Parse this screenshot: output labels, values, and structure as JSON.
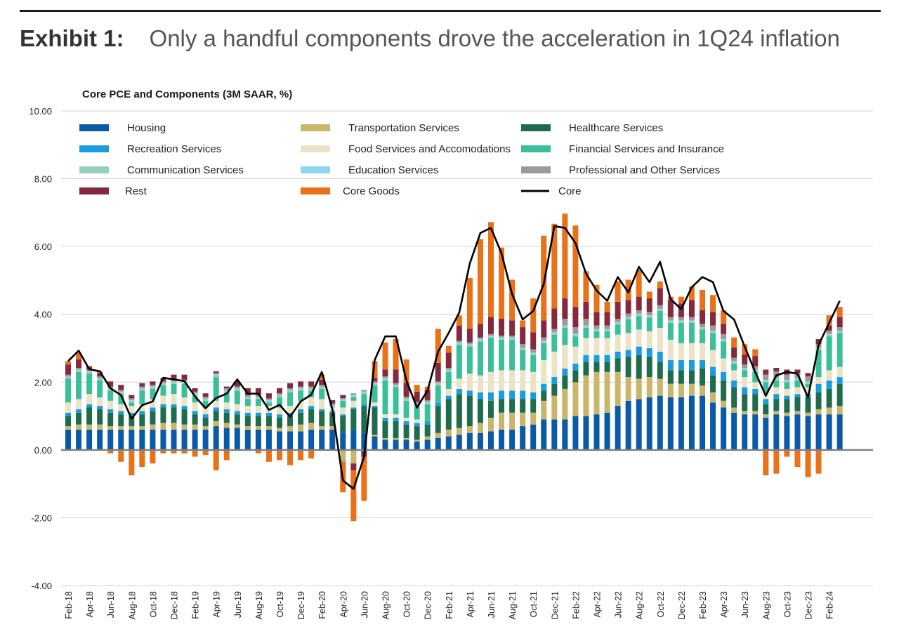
{
  "header": {
    "exhibit_label": "Exhibit 1:",
    "exhibit_title": "Only a handful components drove the acceleration in 1Q24 inflation"
  },
  "chart_data": {
    "type": "bar",
    "stacked": true,
    "title": "Core PCE and Components (3M SAAR, %)",
    "ylim": [
      -4,
      10
    ],
    "yticks": [
      "10.00",
      "8.00",
      "6.00",
      "4.00",
      "2.00",
      "0.00",
      "-2.00",
      "-4.00"
    ],
    "grid": true,
    "legend_position": "top",
    "categories": [
      "Feb-18",
      "Mar-18",
      "Apr-18",
      "May-18",
      "Jun-18",
      "Jul-18",
      "Aug-18",
      "Sep-18",
      "Oct-18",
      "Nov-18",
      "Dec-18",
      "Jan-19",
      "Feb-19",
      "Mar-19",
      "Apr-19",
      "May-19",
      "Jun-19",
      "Jul-19",
      "Aug-19",
      "Sep-19",
      "Oct-19",
      "Nov-19",
      "Dec-19",
      "Jan-20",
      "Feb-20",
      "Mar-20",
      "Apr-20",
      "May-20",
      "Jun-20",
      "Jul-20",
      "Aug-20",
      "Sep-20",
      "Oct-20",
      "Nov-20",
      "Dec-20",
      "Jan-21",
      "Feb-21",
      "Mar-21",
      "Apr-21",
      "May-21",
      "Jun-21",
      "Jul-21",
      "Aug-21",
      "Sep-21",
      "Oct-21",
      "Nov-21",
      "Dec-21",
      "Jan-22",
      "Feb-22",
      "Mar-22",
      "Apr-22",
      "May-22",
      "Jun-22",
      "Jul-22",
      "Aug-22",
      "Sep-22",
      "Oct-22",
      "Nov-22",
      "Dec-22",
      "Jan-23",
      "Feb-23",
      "Mar-23",
      "Apr-23",
      "May-23",
      "Jun-23",
      "Jul-23",
      "Aug-23",
      "Sep-23",
      "Oct-23",
      "Nov-23",
      "Dec-23",
      "Jan-24",
      "Feb-24",
      "Mar-24"
    ],
    "xtick_labels": [
      "Feb-18",
      "Apr-18",
      "Jun-18",
      "Aug-18",
      "Oct-18",
      "Dec-18",
      "Feb-19",
      "Apr-19",
      "Jun-19",
      "Aug-19",
      "Oct-19",
      "Dec-19",
      "Feb-20",
      "Apr-20",
      "Jun-20",
      "Aug-20",
      "Oct-20",
      "Dec-20",
      "Feb-21",
      "Apr-21",
      "Jun-21",
      "Aug-21",
      "Oct-21",
      "Dec-21",
      "Feb-22",
      "Apr-22",
      "Jun-22",
      "Aug-22",
      "Oct-22",
      "Dec-22",
      "Feb-23",
      "Apr-23",
      "Jun-23",
      "Aug-23",
      "Oct-23",
      "Dec-23",
      "Feb-24"
    ],
    "series": [
      {
        "name": "Housing",
        "color": "#0b5aa8",
        "values": [
          0.6,
          0.6,
          0.6,
          0.6,
          0.6,
          0.6,
          0.6,
          0.6,
          0.6,
          0.6,
          0.6,
          0.6,
          0.6,
          0.6,
          0.7,
          0.65,
          0.65,
          0.6,
          0.6,
          0.6,
          0.55,
          0.55,
          0.55,
          0.6,
          0.6,
          0.6,
          0.5,
          0.6,
          0.5,
          0.4,
          0.3,
          0.3,
          0.3,
          0.25,
          0.3,
          0.35,
          0.4,
          0.45,
          0.5,
          0.5,
          0.55,
          0.6,
          0.6,
          0.7,
          0.75,
          0.9,
          0.9,
          0.9,
          1.0,
          1.0,
          1.05,
          1.1,
          1.3,
          1.45,
          1.5,
          1.55,
          1.6,
          1.55,
          1.55,
          1.6,
          1.6,
          1.4,
          1.25,
          1.1,
          1.05,
          1.05,
          0.95,
          1.05,
          1.0,
          1.05,
          1.0,
          1.05,
          1.05,
          1.05
        ]
      },
      {
        "name": "Transportation Services",
        "color": "#c9b66b",
        "values": [
          0.1,
          0.15,
          0.15,
          0.15,
          0.1,
          0.1,
          0.1,
          0.1,
          0.15,
          0.2,
          0.2,
          0.15,
          0.15,
          0.1,
          0.15,
          0.15,
          0.1,
          0.1,
          0.1,
          0.1,
          0.1,
          0.15,
          0.2,
          0.2,
          0.1,
          0.1,
          -0.3,
          -0.4,
          0.0,
          0.05,
          0.05,
          0.05,
          0.05,
          0.05,
          0.1,
          0.15,
          0.2,
          0.2,
          0.2,
          0.3,
          0.4,
          0.5,
          0.5,
          0.4,
          0.35,
          0.55,
          0.7,
          0.9,
          1.0,
          1.2,
          1.25,
          1.2,
          1.0,
          0.7,
          0.6,
          0.6,
          0.5,
          0.4,
          0.4,
          0.35,
          0.3,
          0.3,
          0.2,
          0.15,
          0.1,
          0.1,
          0.1,
          0.1,
          0.1,
          0.1,
          0.1,
          0.15,
          0.2,
          0.25
        ]
      },
      {
        "name": "Healthcare Services",
        "color": "#1f6b4e",
        "values": [
          0.3,
          0.35,
          0.5,
          0.45,
          0.4,
          0.35,
          0.3,
          0.35,
          0.4,
          0.45,
          0.45,
          0.45,
          0.3,
          0.25,
          0.3,
          0.3,
          0.3,
          0.3,
          0.3,
          0.3,
          0.3,
          0.3,
          0.35,
          0.4,
          0.45,
          0.4,
          0.5,
          0.6,
          0.8,
          0.8,
          0.5,
          0.5,
          0.4,
          0.4,
          0.35,
          0.8,
          0.9,
          1.0,
          0.9,
          0.7,
          0.5,
          0.4,
          0.4,
          0.4,
          0.4,
          0.3,
          0.35,
          0.4,
          0.35,
          0.4,
          0.3,
          0.3,
          0.4,
          0.6,
          0.7,
          0.6,
          0.5,
          0.4,
          0.4,
          0.4,
          0.5,
          0.5,
          0.6,
          0.6,
          0.5,
          0.5,
          0.3,
          0.35,
          0.4,
          0.4,
          0.45,
          0.5,
          0.55,
          0.65
        ]
      },
      {
        "name": "Recreation Services",
        "color": "#1a9de0",
        "values": [
          0.1,
          0.1,
          0.1,
          0.1,
          0.1,
          0.1,
          0.1,
          0.1,
          0.1,
          0.1,
          0.1,
          0.1,
          0.1,
          0.1,
          0.1,
          0.1,
          0.1,
          0.1,
          0.1,
          0.1,
          0.1,
          0.1,
          0.1,
          0.1,
          0.05,
          0.05,
          0.05,
          0.05,
          0.05,
          0.05,
          0.1,
          0.1,
          0.1,
          0.1,
          0.1,
          0.1,
          0.1,
          0.15,
          0.15,
          0.2,
          0.25,
          0.25,
          0.25,
          0.25,
          0.2,
          0.2,
          0.2,
          0.2,
          0.2,
          0.2,
          0.2,
          0.2,
          0.2,
          0.2,
          0.25,
          0.25,
          0.3,
          0.3,
          0.3,
          0.3,
          0.25,
          0.25,
          0.25,
          0.2,
          0.2,
          0.15,
          0.15,
          0.15,
          0.1,
          0.1,
          0.1,
          0.25,
          0.25,
          0.2
        ]
      },
      {
        "name": "Food Services and Accomodations",
        "color": "#ece3c4",
        "values": [
          0.3,
          0.3,
          0.3,
          0.25,
          0.25,
          0.2,
          0.2,
          0.2,
          0.25,
          0.25,
          0.3,
          0.25,
          0.25,
          0.2,
          0.2,
          0.2,
          0.2,
          0.2,
          0.2,
          0.2,
          0.2,
          0.2,
          0.25,
          0.25,
          0.3,
          0.1,
          0.2,
          0.2,
          0.0,
          0.1,
          0.1,
          0.1,
          0.1,
          0.1,
          0.0,
          0.0,
          0.2,
          0.3,
          0.5,
          0.5,
          0.6,
          0.6,
          0.6,
          0.6,
          0.6,
          0.7,
          0.75,
          0.7,
          0.5,
          0.5,
          0.5,
          0.5,
          0.5,
          0.5,
          0.5,
          0.5,
          0.7,
          0.6,
          0.5,
          0.5,
          0.5,
          0.5,
          0.4,
          0.3,
          0.3,
          0.2,
          0.2,
          0.2,
          0.2,
          0.2,
          0.2,
          0.2,
          0.3,
          0.3
        ]
      },
      {
        "name": "Financial Services and Insurance",
        "color": "#3bbf9a",
        "values": [
          0.7,
          0.8,
          0.6,
          0.5,
          0.3,
          0.3,
          0.1,
          0.4,
          0.3,
          0.3,
          0.3,
          0.4,
          0.2,
          0.2,
          0.7,
          0.3,
          0.4,
          0.2,
          0.2,
          0.1,
          0.3,
          0.4,
          0.3,
          0.2,
          0.3,
          0.0,
          0.2,
          0.1,
          0.3,
          0.5,
          1.0,
          0.8,
          0.5,
          0.4,
          0.5,
          0.5,
          0.5,
          1.0,
          0.8,
          1.0,
          1.0,
          0.9,
          0.9,
          0.6,
          0.5,
          0.5,
          0.5,
          0.5,
          0.3,
          0.3,
          0.2,
          0.2,
          0.3,
          0.4,
          0.4,
          0.4,
          0.5,
          0.5,
          0.6,
          0.6,
          0.4,
          0.5,
          0.5,
          0.2,
          0.2,
          0.3,
          0.3,
          0.2,
          0.2,
          0.2,
          0.1,
          0.8,
          1.0,
          1.0
        ]
      },
      {
        "name": "Communication Services",
        "color": "#96d0bc",
        "values": [
          0.05,
          0.05,
          0.05,
          0.05,
          0.05,
          0.05,
          0.05,
          0.05,
          0.05,
          0.05,
          0.05,
          0.05,
          0.05,
          0.05,
          0.05,
          0.05,
          0.05,
          0.05,
          0.05,
          0.05,
          0.05,
          0.05,
          0.05,
          0.05,
          0.05,
          0.05,
          0.05,
          0.05,
          0.05,
          0.05,
          0.05,
          0.05,
          0.05,
          0.05,
          0.05,
          0.05,
          0.05,
          0.05,
          0.05,
          0.05,
          0.05,
          0.05,
          0.05,
          0.05,
          0.05,
          0.05,
          0.05,
          0.05,
          0.05,
          0.05,
          0.05,
          0.05,
          0.05,
          0.05,
          0.05,
          0.05,
          0.05,
          0.05,
          0.05,
          0.05,
          0.05,
          0.05,
          0.05,
          0.05,
          0.05,
          0.05,
          0.05,
          0.05,
          0.05,
          0.05,
          0.05,
          0.05,
          0.05,
          0.05
        ]
      },
      {
        "name": "Education Services",
        "color": "#8dd5f0",
        "values": [
          0.02,
          0.02,
          0.02,
          0.02,
          0.02,
          0.02,
          0.02,
          0.02,
          0.02,
          0.02,
          0.02,
          0.02,
          0.02,
          0.02,
          0.02,
          0.02,
          0.02,
          0.02,
          0.02,
          0.02,
          0.02,
          0.02,
          0.02,
          0.02,
          0.02,
          0.02,
          0.02,
          0.02,
          0.02,
          0.02,
          0.02,
          0.02,
          0.02,
          0.02,
          0.02,
          0.02,
          0.02,
          0.02,
          0.02,
          0.02,
          0.02,
          0.02,
          0.02,
          0.02,
          0.02,
          0.02,
          0.02,
          0.02,
          0.02,
          0.02,
          0.02,
          0.02,
          0.02,
          0.02,
          0.02,
          0.02,
          0.02,
          0.02,
          0.02,
          0.02,
          0.02,
          0.02,
          0.02,
          0.02,
          0.02,
          0.02,
          0.02,
          0.02,
          0.02,
          0.02,
          0.02,
          0.02,
          0.02,
          0.02
        ]
      },
      {
        "name": "Professional and Other Services",
        "color": "#9a9a9e",
        "values": [
          0.05,
          0.05,
          0.05,
          0.05,
          0.05,
          0.05,
          0.05,
          0.05,
          0.05,
          0.05,
          0.05,
          0.05,
          0.05,
          0.05,
          0.05,
          0.05,
          0.05,
          0.05,
          0.05,
          0.05,
          0.05,
          0.05,
          0.05,
          0.05,
          0.05,
          0.05,
          -0.05,
          0.05,
          0.05,
          0.05,
          0.05,
          0.05,
          0.05,
          0.05,
          0.05,
          0.05,
          0.05,
          0.05,
          0.05,
          0.05,
          0.05,
          0.05,
          0.05,
          0.1,
          0.1,
          0.1,
          0.1,
          0.2,
          0.2,
          0.2,
          0.1,
          0.1,
          0.1,
          0.1,
          0.1,
          0.1,
          0.1,
          0.1,
          0.1,
          0.1,
          0.1,
          0.15,
          0.15,
          0.1,
          0.1,
          0.1,
          0.15,
          0.2,
          0.15,
          0.15,
          0.15,
          0.1,
          0.1,
          0.1
        ]
      },
      {
        "name": "Rest",
        "color": "#84293e",
        "values": [
          0.3,
          0.25,
          0.1,
          0.1,
          0.15,
          0.15,
          0.1,
          0.1,
          0.1,
          0.1,
          0.15,
          0.15,
          0.1,
          0.1,
          0.05,
          0.05,
          0.15,
          0.2,
          0.2,
          0.15,
          0.15,
          0.15,
          0.15,
          0.15,
          0.15,
          0.1,
          0.1,
          -0.2,
          -0.2,
          0.1,
          0.2,
          0.4,
          0.4,
          0.3,
          0.3,
          0.55,
          0.45,
          0.45,
          0.4,
          0.4,
          0.5,
          0.5,
          0.45,
          0.5,
          0.5,
          0.5,
          0.6,
          0.6,
          0.6,
          0.5,
          0.4,
          0.4,
          0.5,
          0.4,
          0.4,
          0.4,
          0.5,
          0.5,
          0.4,
          0.5,
          0.4,
          0.4,
          0.3,
          0.3,
          0.3,
          0.3,
          0.15,
          0.1,
          0.15,
          0.1,
          0.1,
          0.15,
          0.15,
          0.3
        ]
      },
      {
        "name": "Core Goods",
        "color": "#e8711a",
        "values": [
          0.1,
          0.2,
          0.0,
          0.05,
          -0.1,
          -0.35,
          -0.75,
          -0.5,
          -0.4,
          -0.1,
          -0.1,
          -0.1,
          -0.2,
          -0.15,
          -0.6,
          -0.3,
          0.0,
          0.0,
          -0.1,
          -0.35,
          -0.3,
          -0.45,
          -0.3,
          -0.25,
          0.15,
          0.0,
          -0.9,
          -1.5,
          -1.3,
          0.5,
          0.8,
          0.9,
          0.7,
          0.2,
          0.1,
          1.0,
          0.2,
          0.3,
          1.5,
          2.5,
          2.8,
          2.1,
          1.2,
          0.2,
          1.0,
          2.5,
          2.5,
          2.5,
          2.4,
          0.9,
          0.8,
          0.3,
          0.6,
          0.6,
          0.8,
          0.2,
          0.2,
          0.1,
          0.2,
          0.4,
          0.6,
          0.5,
          0.4,
          0.3,
          0.3,
          0.2,
          -0.75,
          -0.7,
          -0.2,
          -0.5,
          -0.8,
          -0.7,
          0.3,
          0.3
        ]
      }
    ],
    "line": {
      "name": "Core",
      "color": "#000000",
      "values": [
        2.62,
        2.93,
        2.38,
        2.32,
        1.82,
        1.62,
        0.92,
        1.32,
        1.43,
        2.13,
        2.08,
        2.03,
        1.58,
        1.23,
        1.53,
        1.66,
        2.08,
        1.66,
        1.66,
        1.18,
        1.33,
        0.98,
        1.43,
        1.63,
        2.3,
        1.2,
        -0.9,
        -1.15,
        -0.2,
        2.65,
        3.35,
        3.35,
        2.05,
        1.25,
        1.75,
        2.9,
        3.45,
        4.05,
        5.5,
        6.4,
        6.55,
        5.8,
        4.6,
        3.85,
        4.1,
        4.9,
        6.6,
        6.55,
        6.1,
        5.2,
        4.7,
        4.4,
        5.1,
        4.65,
        5.4,
        4.95,
        5.55,
        4.45,
        4.15,
        4.8,
        5.1,
        4.95,
        4.1,
        3.85,
        3.05,
        2.3,
        1.6,
        2.2,
        2.3,
        2.25,
        1.55,
        3.1,
        3.75,
        4.4
      ]
    }
  }
}
